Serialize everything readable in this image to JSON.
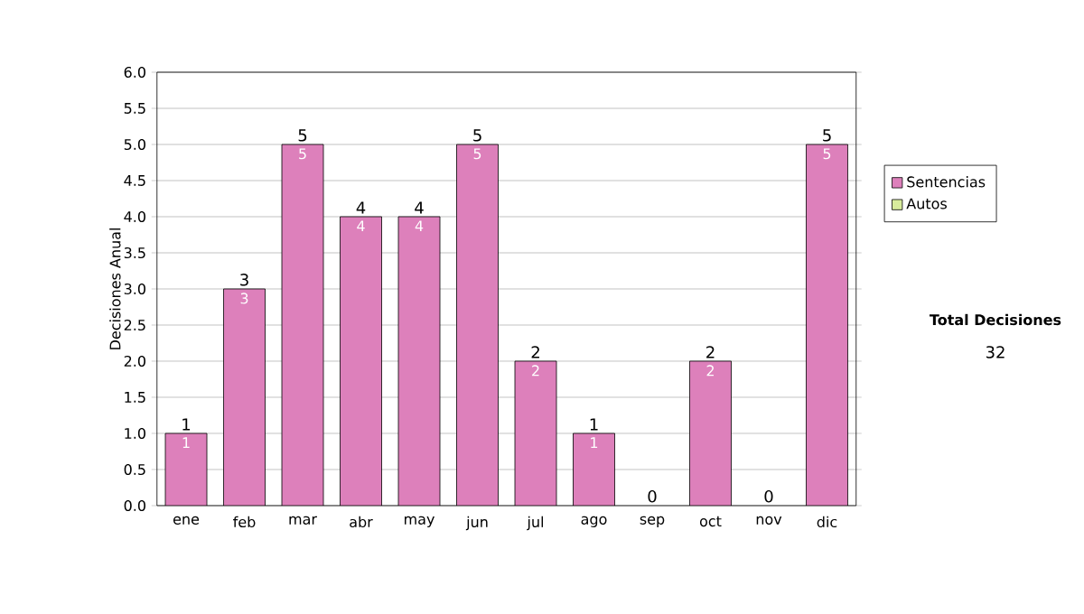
{
  "chart_data": {
    "type": "bar",
    "stacked": true,
    "ylabel": "Decisiones Anual",
    "categories": [
      "ene",
      "feb",
      "mar",
      "abr",
      "may",
      "jun",
      "jul",
      "ago",
      "sep",
      "oct",
      "nov",
      "dic"
    ],
    "series": [
      {
        "name": "Sentencias",
        "color": "#dd80bb",
        "values": [
          1,
          3,
          5,
          4,
          4,
          5,
          2,
          1,
          0,
          2,
          0,
          5
        ],
        "value_labels": [
          "1",
          "3",
          "5",
          "4",
          "4",
          "5",
          "2",
          "1",
          null,
          "2",
          null,
          "5"
        ]
      },
      {
        "name": "Autos",
        "color": "#d8ec9c",
        "values": [
          0,
          0,
          0,
          0,
          0,
          0,
          0,
          0,
          0,
          0,
          0,
          0
        ]
      }
    ],
    "totals": [
      "1",
      "3",
      "5",
      "4",
      "4",
      "5",
      "2",
      "1",
      "0",
      "2",
      "0",
      "5"
    ],
    "ylim": [
      0,
      6
    ],
    "yticks": [
      {
        "value": 0,
        "label": "0.0"
      },
      {
        "value": 0.5,
        "label": "0.5"
      },
      {
        "value": 1,
        "label": "1.0"
      },
      {
        "value": 1.5,
        "label": "1.5"
      },
      {
        "value": 2,
        "label": "2.0"
      },
      {
        "value": 2.5,
        "label": "2.5"
      },
      {
        "value": 3,
        "label": "3.0"
      },
      {
        "value": 3.5,
        "label": "3.5"
      },
      {
        "value": 4,
        "label": "4.0"
      },
      {
        "value": 4.5,
        "label": "4.5"
      },
      {
        "value": 5,
        "label": "5.0"
      },
      {
        "value": 5.5,
        "label": "5.5"
      },
      {
        "value": 6,
        "label": "6.0"
      }
    ],
    "grid": "y",
    "legend": "right",
    "annotations": [
      "Total Decisiones",
      "32"
    ]
  }
}
